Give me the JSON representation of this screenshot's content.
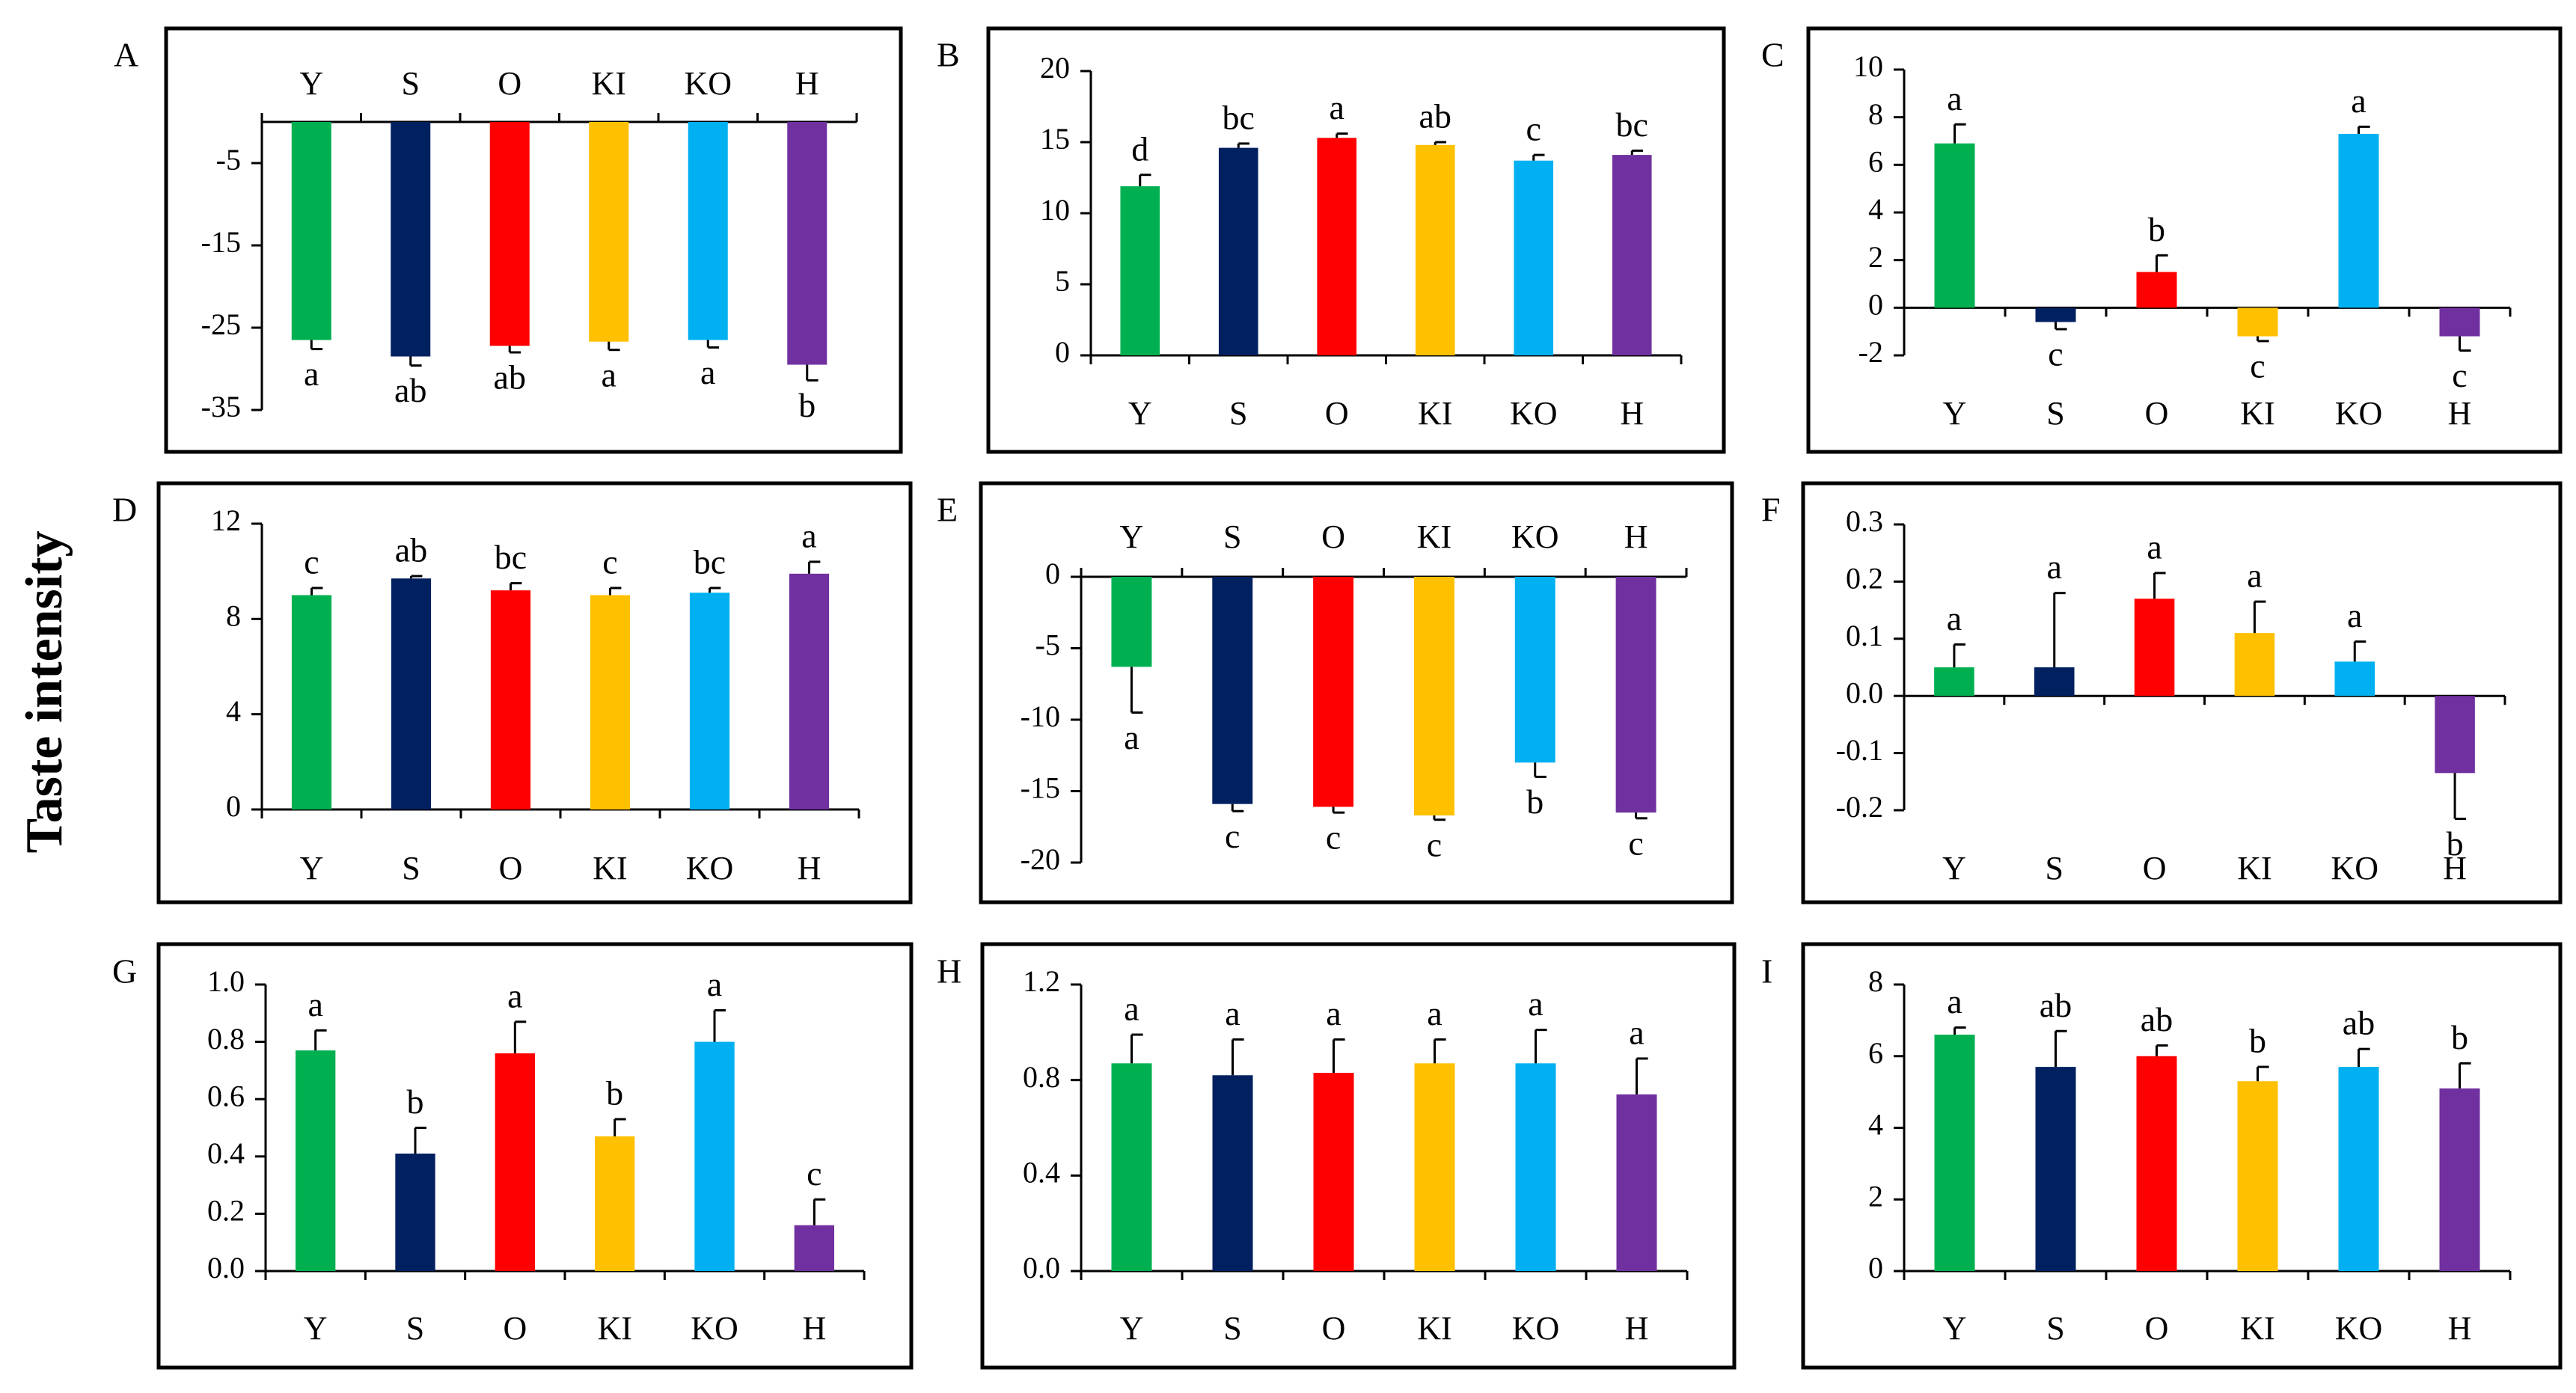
{
  "figure": {
    "y_axis_title": "Taste intensity",
    "bar_colors": [
      "#00b050",
      "#002060",
      "#ff0000",
      "#ffc000",
      "#00b0f0",
      "#7030a0"
    ]
  },
  "chart_data": [
    {
      "type": "bar",
      "panel_label": "A",
      "categories": [
        "Y",
        "S",
        "O",
        "KI",
        "KO",
        "H"
      ],
      "values": [
        -26.5,
        -28.5,
        -27.2,
        -26.7,
        -26.5,
        -29.5
      ],
      "errors": [
        1.1,
        1.1,
        0.8,
        1.0,
        0.9,
        1.9
      ],
      "letters": [
        "a",
        "ab",
        "ab",
        "a",
        "a",
        "b"
      ],
      "ylim": [
        -35,
        0
      ],
      "ticks": [
        -5,
        -15,
        -25,
        -35
      ],
      "tick_labels": [
        "-5",
        "-15",
        "-25",
        "-35"
      ],
      "xlabels_position": "top"
    },
    {
      "type": "bar",
      "panel_label": "B",
      "categories": [
        "Y",
        "S",
        "O",
        "KI",
        "KO",
        "H"
      ],
      "values": [
        11.9,
        14.6,
        15.3,
        14.8,
        13.7,
        14.1
      ],
      "errors": [
        0.8,
        0.3,
        0.3,
        0.2,
        0.4,
        0.3
      ],
      "letters": [
        "d",
        "bc",
        "a",
        "ab",
        "c",
        "bc"
      ],
      "ylim": [
        0,
        20
      ],
      "ticks": [
        0,
        5,
        10,
        15,
        20
      ],
      "tick_labels": [
        "0",
        "5",
        "10",
        "15",
        "20"
      ],
      "xlabels_position": "bottom"
    },
    {
      "type": "bar",
      "panel_label": "C",
      "categories": [
        "Y",
        "S",
        "O",
        "KI",
        "KO",
        "H"
      ],
      "values": [
        6.9,
        -0.6,
        1.5,
        -1.2,
        7.3,
        -1.2
      ],
      "errors": [
        0.8,
        0.3,
        0.7,
        0.2,
        0.3,
        0.6
      ],
      "letters": [
        "a",
        "c",
        "b",
        "c",
        "a",
        "c"
      ],
      "ylim": [
        -2,
        10
      ],
      "ticks": [
        -2,
        0,
        2,
        4,
        6,
        8,
        10
      ],
      "tick_labels": [
        "-2",
        "0",
        "2",
        "4",
        "6",
        "8",
        "10"
      ],
      "xlabels_position": "bottom"
    },
    {
      "type": "bar",
      "panel_label": "D",
      "categories": [
        "Y",
        "S",
        "O",
        "KI",
        "KO",
        "H"
      ],
      "values": [
        9.0,
        9.7,
        9.2,
        9.0,
        9.1,
        9.9
      ],
      "errors": [
        0.3,
        0.1,
        0.3,
        0.3,
        0.2,
        0.5
      ],
      "letters": [
        "c",
        "ab",
        "bc",
        "c",
        "bc",
        "a"
      ],
      "ylim": [
        0,
        12
      ],
      "ticks": [
        0,
        4,
        8,
        12
      ],
      "tick_labels": [
        "0",
        "4",
        "8",
        "12"
      ],
      "xlabels_position": "bottom"
    },
    {
      "type": "bar",
      "panel_label": "E",
      "categories": [
        "Y",
        "S",
        "O",
        "KI",
        "KO",
        "H"
      ],
      "values": [
        -6.3,
        -15.9,
        -16.1,
        -16.7,
        -13.0,
        -16.5
      ],
      "errors": [
        3.2,
        0.5,
        0.4,
        0.3,
        1.0,
        0.4
      ],
      "letters": [
        "a",
        "c",
        "c",
        "c",
        "b",
        "c"
      ],
      "ylim": [
        -20,
        0
      ],
      "ticks": [
        0,
        -5,
        -10,
        -15,
        -20
      ],
      "tick_labels": [
        "0",
        "-5",
        "-10",
        "-15",
        "-20"
      ],
      "xlabels_position": "top"
    },
    {
      "type": "bar",
      "panel_label": "F",
      "categories": [
        "Y",
        "S",
        "O",
        "KI",
        "KO",
        "H"
      ],
      "values": [
        0.05,
        0.05,
        0.17,
        0.11,
        0.06,
        -0.135
      ],
      "errors": [
        0.04,
        0.13,
        0.045,
        0.055,
        0.035,
        0.08
      ],
      "letters": [
        "a",
        "a",
        "a",
        "a",
        "a",
        "b"
      ],
      "ylim": [
        -0.2,
        0.3
      ],
      "ticks": [
        -0.2,
        -0.1,
        0.0,
        0.1,
        0.2,
        0.3
      ],
      "tick_labels": [
        "-0.2",
        "-0.1",
        "0.0",
        "0.1",
        "0.2",
        "0.3"
      ],
      "xlabels_position": "bottom"
    },
    {
      "type": "bar",
      "panel_label": "G",
      "categories": [
        "Y",
        "S",
        "O",
        "KI",
        "KO",
        "H"
      ],
      "values": [
        0.77,
        0.41,
        0.76,
        0.47,
        0.8,
        0.16
      ],
      "errors": [
        0.07,
        0.09,
        0.11,
        0.06,
        0.11,
        0.09
      ],
      "letters": [
        "a",
        "b",
        "a",
        "b",
        "a",
        "c"
      ],
      "ylim": [
        0,
        1.0
      ],
      "ticks": [
        0.0,
        0.2,
        0.4,
        0.6,
        0.8,
        1.0
      ],
      "tick_labels": [
        "0.0",
        "0.2",
        "0.4",
        "0.6",
        "0.8",
        "1.0"
      ],
      "xlabels_position": "bottom"
    },
    {
      "type": "bar",
      "panel_label": "H",
      "categories": [
        "Y",
        "S",
        "O",
        "KI",
        "KO",
        "H"
      ],
      "values": [
        0.87,
        0.82,
        0.83,
        0.87,
        0.87,
        0.74
      ],
      "errors": [
        0.12,
        0.15,
        0.14,
        0.1,
        0.14,
        0.15
      ],
      "letters": [
        "a",
        "a",
        "a",
        "a",
        "a",
        "a"
      ],
      "ylim": [
        0,
        1.2
      ],
      "ticks": [
        0.0,
        0.4,
        0.8,
        1.2
      ],
      "tick_labels": [
        "0.0",
        "0.4",
        "0.8",
        "1.2"
      ],
      "xlabels_position": "bottom"
    },
    {
      "type": "bar",
      "panel_label": "I",
      "categories": [
        "Y",
        "S",
        "O",
        "KI",
        "KO",
        "H"
      ],
      "values": [
        6.6,
        5.7,
        6.0,
        5.3,
        5.7,
        5.1
      ],
      "errors": [
        0.2,
        1.0,
        0.3,
        0.4,
        0.5,
        0.7
      ],
      "letters": [
        "a",
        "ab",
        "ab",
        "b",
        "ab",
        "b"
      ],
      "ylim": [
        0,
        8
      ],
      "ticks": [
        0,
        2,
        4,
        6,
        8
      ],
      "tick_labels": [
        "0",
        "2",
        "4",
        "6",
        "8"
      ],
      "xlabels_position": "bottom"
    }
  ]
}
